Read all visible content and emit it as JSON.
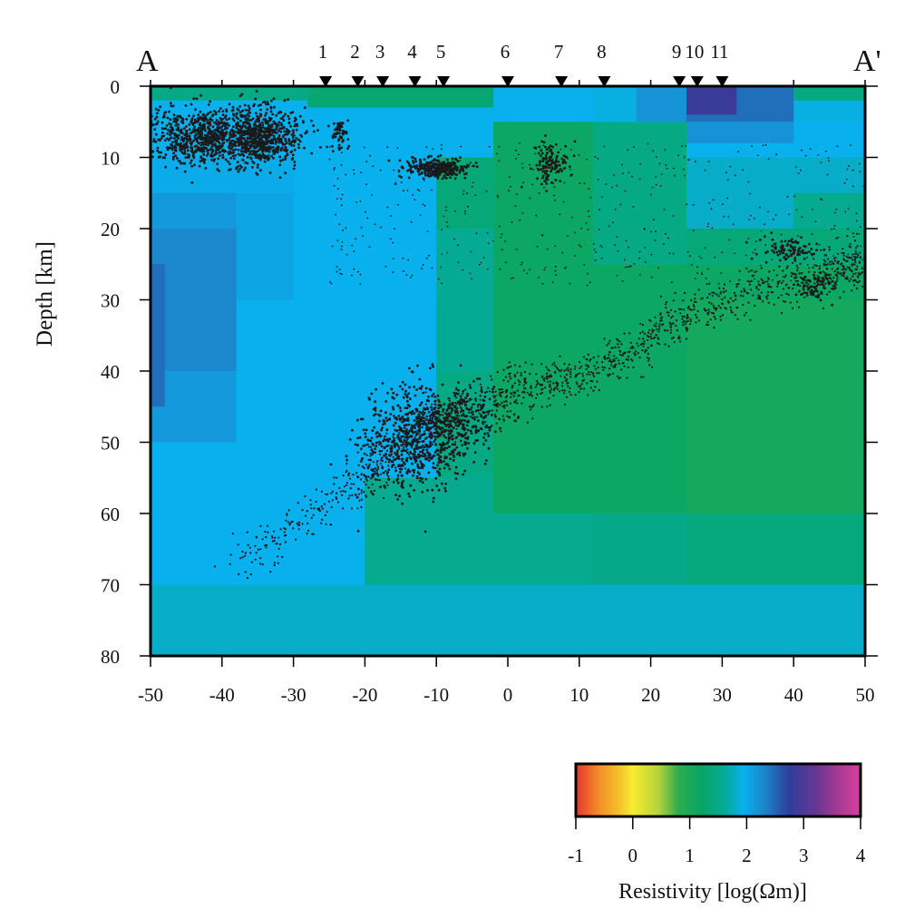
{
  "chart_data": [
    {
      "type": "heatmap",
      "title": "",
      "subtitle": "",
      "profile_start_label": "A",
      "profile_end_label": "A'",
      "xlabel": "",
      "ylabel": "Depth [km]",
      "xlim": [
        -50,
        50
      ],
      "ylim": [
        0,
        80
      ],
      "y_inverted": true,
      "x_ticks": [
        -50,
        -40,
        -30,
        -20,
        -10,
        0,
        10,
        20,
        30,
        40,
        50
      ],
      "y_ticks": [
        0,
        10,
        20,
        30,
        40,
        50,
        60,
        70,
        80
      ],
      "grid": false,
      "stations": [
        {
          "label": "1",
          "x": -25.5
        },
        {
          "label": "2",
          "x": -21
        },
        {
          "label": "3",
          "x": -17.5
        },
        {
          "label": "4",
          "x": -13
        },
        {
          "label": "5",
          "x": -9
        },
        {
          "label": "6",
          "x": 0
        },
        {
          "label": "7",
          "x": 7.5
        },
        {
          "label": "8",
          "x": 13.5
        },
        {
          "label": "9",
          "x": 24
        },
        {
          "label": "10",
          "x": 26.5
        },
        {
          "label": "11",
          "x": 30
        }
      ],
      "value_unit": "log10 resistivity (Ohm m)",
      "background_value": 1.9,
      "resistivity_cells": [
        {
          "x0": -50,
          "x1": 50,
          "y0": 70,
          "y1": 80,
          "v": 1.8
        },
        {
          "x0": -20,
          "x1": 50,
          "y0": 55,
          "y1": 70,
          "v": 1.55
        },
        {
          "x0": 12,
          "x1": 25,
          "y0": 55,
          "y1": 70,
          "v": 1.5
        },
        {
          "x0": 25,
          "x1": 50,
          "y0": 60,
          "y1": 70,
          "v": 1.4
        },
        {
          "x0": -10,
          "x1": 50,
          "y0": 30,
          "y1": 55,
          "v": 1.45
        },
        {
          "x0": -2,
          "x1": 25,
          "y0": 30,
          "y1": 60,
          "v": 1.15
        },
        {
          "x0": 25,
          "x1": 50,
          "y0": 30,
          "y1": 60,
          "v": 1.05
        },
        {
          "x0": -10,
          "x1": -2,
          "y0": 20,
          "y1": 40,
          "v": 1.6
        },
        {
          "x0": -2,
          "x1": 50,
          "y0": 25,
          "y1": 30,
          "v": 1.15
        },
        {
          "x0": 25,
          "x1": 50,
          "y0": 20,
          "y1": 25,
          "v": 1.35
        },
        {
          "x0": -2,
          "x1": 12,
          "y0": 5,
          "y1": 25,
          "v": 1.15
        },
        {
          "x0": 12,
          "x1": 25,
          "y0": 5,
          "y1": 25,
          "v": 1.45
        },
        {
          "x0": -10,
          "x1": -2,
          "y0": 10,
          "y1": 20,
          "v": 1.35
        },
        {
          "x0": 25,
          "x1": 50,
          "y0": 10,
          "y1": 20,
          "v": 1.8
        },
        {
          "x0": 40,
          "x1": 50,
          "y0": 15,
          "y1": 20,
          "v": 1.55
        },
        {
          "x0": 12,
          "x1": 50,
          "y0": 0,
          "y1": 5,
          "v": 1.9
        },
        {
          "x0": 18,
          "x1": 25,
          "y0": 0,
          "y1": 5,
          "v": 2.2
        },
        {
          "x0": 25,
          "x1": 40,
          "y0": 0,
          "y1": 5,
          "v": 2.45
        },
        {
          "x0": 40,
          "x1": 50,
          "y0": 0,
          "y1": 2,
          "v": 1.4
        },
        {
          "x0": 25,
          "x1": 32,
          "y0": 0,
          "y1": 4,
          "v": 2.85
        },
        {
          "x0": 25,
          "x1": 40,
          "y0": 5,
          "y1": 8,
          "v": 2.2
        },
        {
          "x0": -28,
          "x1": -2,
          "y0": 0,
          "y1": 3,
          "v": 1.3
        },
        {
          "x0": -50,
          "x1": -28,
          "y0": 0,
          "y1": 2,
          "v": 1.45
        },
        {
          "x0": -50,
          "x1": -38,
          "y0": 15,
          "y1": 50,
          "v": 2.15
        },
        {
          "x0": -50,
          "x1": -38,
          "y0": 20,
          "y1": 40,
          "v": 2.3
        },
        {
          "x0": -50,
          "x1": -48,
          "y0": 25,
          "y1": 45,
          "v": 2.45
        },
        {
          "x0": -38,
          "x1": -30,
          "y0": 15,
          "y1": 30,
          "v": 2.05
        },
        {
          "x0": -50,
          "x1": -30,
          "y0": 10,
          "y1": 15,
          "v": 2.0
        }
      ],
      "seismicity_clusters": [
        {
          "cx": -42,
          "cy": 7,
          "sx": 5,
          "sy": 2,
          "n": 900
        },
        {
          "cx": -34,
          "cy": 7,
          "sx": 2.5,
          "sy": 2,
          "n": 500
        },
        {
          "cx": -23.5,
          "cy": 7,
          "sx": 0.6,
          "sy": 1.2,
          "n": 60
        },
        {
          "cx": -10,
          "cy": 11.5,
          "sx": 2,
          "sy": 0.7,
          "n": 320
        },
        {
          "cx": 6,
          "cy": 11,
          "sx": 1.2,
          "sy": 1.5,
          "n": 120
        },
        {
          "cx": 39,
          "cy": 23,
          "sx": 2,
          "sy": 0.8,
          "n": 90
        },
        {
          "cx": 43,
          "cy": 28,
          "sx": 1.5,
          "sy": 1,
          "n": 80
        },
        {
          "cx": -13,
          "cy": 50,
          "sx": 4,
          "sy": 3.5,
          "n": 650
        },
        {
          "cx": -8,
          "cy": 46,
          "sx": 4,
          "sy": 2.5,
          "n": 250
        }
      ],
      "slab_seismicity": [
        [
          -38,
          67
        ],
        [
          -20,
          55
        ],
        [
          -10,
          47
        ],
        [
          0,
          43
        ],
        [
          10,
          41
        ],
        [
          20,
          35
        ],
        [
          30,
          30
        ],
        [
          45,
          26
        ],
        [
          50,
          25
        ]
      ],
      "colorbar": {
        "title": "Resistivity [log(Ωm)]",
        "ticks": [
          -1,
          0,
          1,
          2,
          3,
          4
        ],
        "stops": [
          {
            "v": -1.0,
            "c": "#e8342f"
          },
          {
            "v": -0.6,
            "c": "#f28c28"
          },
          {
            "v": -0.2,
            "c": "#f5c72a"
          },
          {
            "v": 0.0,
            "c": "#f8ec2f"
          },
          {
            "v": 0.45,
            "c": "#b5d33c"
          },
          {
            "v": 0.8,
            "c": "#2fad4e"
          },
          {
            "v": 1.2,
            "c": "#06a666"
          },
          {
            "v": 1.6,
            "c": "#05aa95"
          },
          {
            "v": 1.95,
            "c": "#08b0ee"
          },
          {
            "v": 2.3,
            "c": "#1b87cc"
          },
          {
            "v": 2.75,
            "c": "#2d3d9a"
          },
          {
            "v": 3.25,
            "c": "#6d3593"
          },
          {
            "v": 3.7,
            "c": "#b33b95"
          },
          {
            "v": 4.0,
            "c": "#d83ea0"
          }
        ]
      }
    }
  ]
}
